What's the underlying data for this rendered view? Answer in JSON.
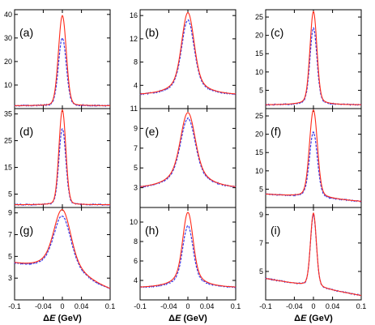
{
  "chart_data": {
    "type": "line",
    "layout": "3x3 grid of panels, columns share x axis",
    "xlabel_prefix": "Δ",
    "xlabel_var": "E",
    "xlabel_suffix": " (GeV)",
    "xlim": [
      -0.1,
      0.1
    ],
    "xticks": [
      -0.1,
      -0.04,
      0,
      0.04,
      0.1
    ],
    "xtick_labels": [
      "-0.1",
      "-0.04",
      "0",
      "0.04",
      "0.1"
    ],
    "series_styles": [
      {
        "role": "model",
        "color": "#ff2a1a",
        "style": "solid"
      },
      {
        "role": "data",
        "color": "#3a3ae8",
        "style": "dashed"
      }
    ],
    "panels": [
      {
        "label": "(a)",
        "ylim": [
          0,
          42
        ],
        "yticks": [
          10,
          20,
          30,
          40
        ],
        "ytick_labels": [
          "10",
          "20",
          "30",
          "40"
        ],
        "base": 1.2,
        "slope": 0.0,
        "width": 0.008,
        "peak_model": 39.5,
        "peak_data": 30.0,
        "tail_frac": 0.05
      },
      {
        "label": "(b)",
        "ylim": [
          0,
          17
        ],
        "yticks": [
          4,
          8,
          12,
          16
        ],
        "ytick_labels": [
          "4",
          "8",
          "12",
          "16"
        ],
        "base": 2.2,
        "slope": 0.0,
        "width": 0.012,
        "peak_model": 16.5,
        "peak_data": 15.2,
        "tail_frac": 0.35
      },
      {
        "label": "(c)",
        "ylim": [
          0,
          27
        ],
        "yticks": [
          5,
          10,
          15,
          20,
          25
        ],
        "ytick_labels": [
          "5",
          "10",
          "15",
          "20",
          "25"
        ],
        "base": 1.0,
        "slope": 0.0,
        "width": 0.007,
        "peak_model": 26.5,
        "peak_data": 22.0,
        "tail_frac": 0.12
      },
      {
        "label": "(d)",
        "ylim": [
          0,
          37
        ],
        "yticks": [
          5,
          15,
          25,
          35
        ],
        "ytick_labels": [
          "5",
          "15",
          "25",
          "35"
        ],
        "base": 1.0,
        "slope": 0.0,
        "width": 0.007,
        "peak_model": 36.5,
        "peak_data": 29.5,
        "tail_frac": 0.05
      },
      {
        "label": "(e)",
        "ylim": [
          1,
          11
        ],
        "yticks": [
          3,
          5,
          7,
          9,
          11
        ],
        "ytick_labels": [
          "3",
          "5",
          "7",
          "9",
          "11"
        ],
        "base": 2.8,
        "slope": 0.0,
        "width": 0.014,
        "peak_model": 10.6,
        "peak_data": 10.0,
        "tail_frac": 0.45
      },
      {
        "label": "(f)",
        "ylim": [
          0,
          27
        ],
        "yticks": [
          5,
          10,
          15,
          20,
          25
        ],
        "ytick_labels": [
          "5",
          "10",
          "15",
          "20",
          "25"
        ],
        "base": 2.6,
        "slope": -10.0,
        "width": 0.008,
        "peak_model": 26.6,
        "peak_data": 20.5,
        "tail_frac": 0.12
      },
      {
        "label": "(g)",
        "ylim": [
          1,
          9.5
        ],
        "yticks": [
          3,
          5,
          7,
          9
        ],
        "ytick_labels": [
          "3",
          "5",
          "7",
          "9"
        ],
        "base": 2.9,
        "slope": -12.0,
        "width": 0.016,
        "peak_model": 9.3,
        "peak_data": 8.7,
        "tail_frac": 0.5
      },
      {
        "label": "(h)",
        "ylim": [
          2,
          11.5
        ],
        "yticks": [
          4,
          6,
          8,
          10
        ],
        "ytick_labels": [
          "4",
          "6",
          "8",
          "10"
        ],
        "base": 3.2,
        "slope": 0.0,
        "width": 0.01,
        "peak_model": 11.0,
        "peak_data": 9.6,
        "tail_frac": 0.35
      },
      {
        "label": "(i)",
        "ylim": [
          3,
          9.5
        ],
        "yticks": [
          5,
          7,
          9
        ],
        "ytick_labels": [
          "5",
          "7",
          "9"
        ],
        "base": 3.9,
        "slope": -6.0,
        "width": 0.006,
        "peak_model": 9.1,
        "peak_data": 9.0,
        "tail_frac": 0.1
      }
    ]
  }
}
